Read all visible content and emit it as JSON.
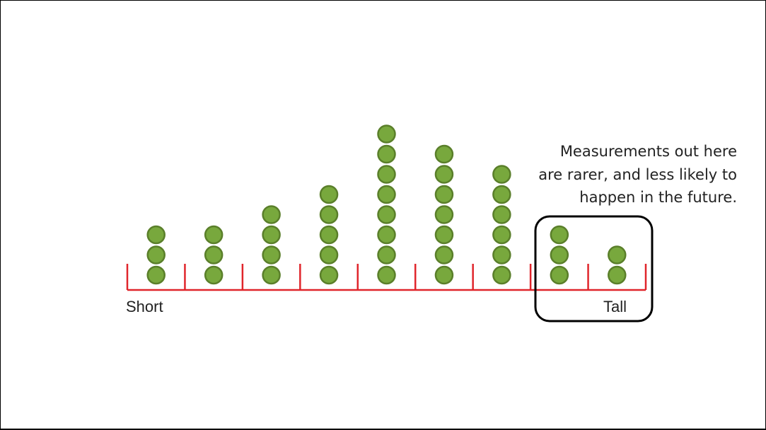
{
  "chart_data": {
    "type": "scatter",
    "subtype": "dot-plot",
    "bins": 9,
    "counts": [
      3,
      3,
      4,
      5,
      8,
      7,
      6,
      3,
      2
    ],
    "x_axis_labels": {
      "left": "Short",
      "right": "Tall"
    },
    "highlighted_bins": [
      8,
      9
    ],
    "annotation_lines": [
      "Measurements out here",
      "are rarer, and less likely to",
      "happen in the future."
    ],
    "colors": {
      "dot_fill": "#78a83d",
      "dot_stroke": "#5a7f2a",
      "axis": "#e0252b",
      "box": "#000000"
    }
  }
}
